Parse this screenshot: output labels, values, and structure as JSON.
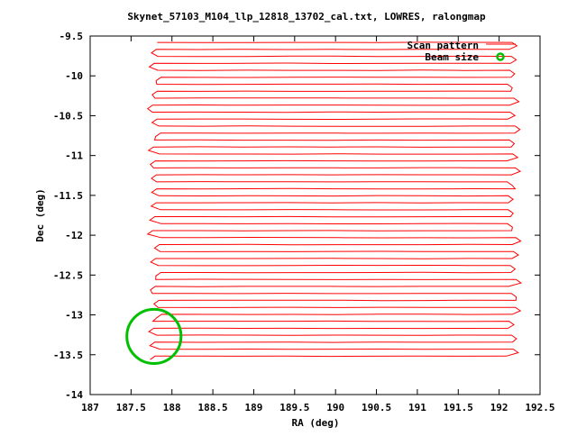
{
  "chart_data": {
    "type": "line",
    "title": "Skynet_57103_M104_llp_12818_13702_cal.txt, LOWRES, ralongmap",
    "xlabel": "RA (deg)",
    "ylabel": "Dec (deg)",
    "xlim": [
      187,
      192.5
    ],
    "ylim": [
      -14,
      -9.5
    ],
    "xticks": [
      187,
      187.5,
      188,
      188.5,
      189,
      189.5,
      190,
      190.5,
      191,
      191.5,
      192,
      192.5
    ],
    "xtick_labels": [
      "187",
      "187.5",
      "188",
      "188.5",
      "189",
      "189.5",
      "190",
      "190.5",
      "191",
      "191.5",
      "192",
      "192.5"
    ],
    "yticks": [
      -9.5,
      -10,
      -10.5,
      -11,
      -11.5,
      -12,
      -12.5,
      -13,
      -13.5,
      -14
    ],
    "ytick_labels": [
      "-9.5",
      "-10",
      "-10.5",
      "-11",
      "-11.5",
      "-12",
      "-12.5",
      "-13",
      "-13.5",
      "-14"
    ],
    "grid": false,
    "legend_placement": "top-right",
    "series": [
      {
        "name": "Scan pattern",
        "color": "#ff0000",
        "style": "line",
        "west_ra": 187.82,
        "east_ra": 192.15,
        "dec_start": -9.58,
        "dec_end": -13.52,
        "n_legs": 46,
        "dec_step": 0.0875
      },
      {
        "name": "Beam size",
        "color": "#00c000",
        "style": "circle",
        "center": [
          187.78,
          -13.27
        ],
        "radius_dec": 0.34
      }
    ]
  }
}
